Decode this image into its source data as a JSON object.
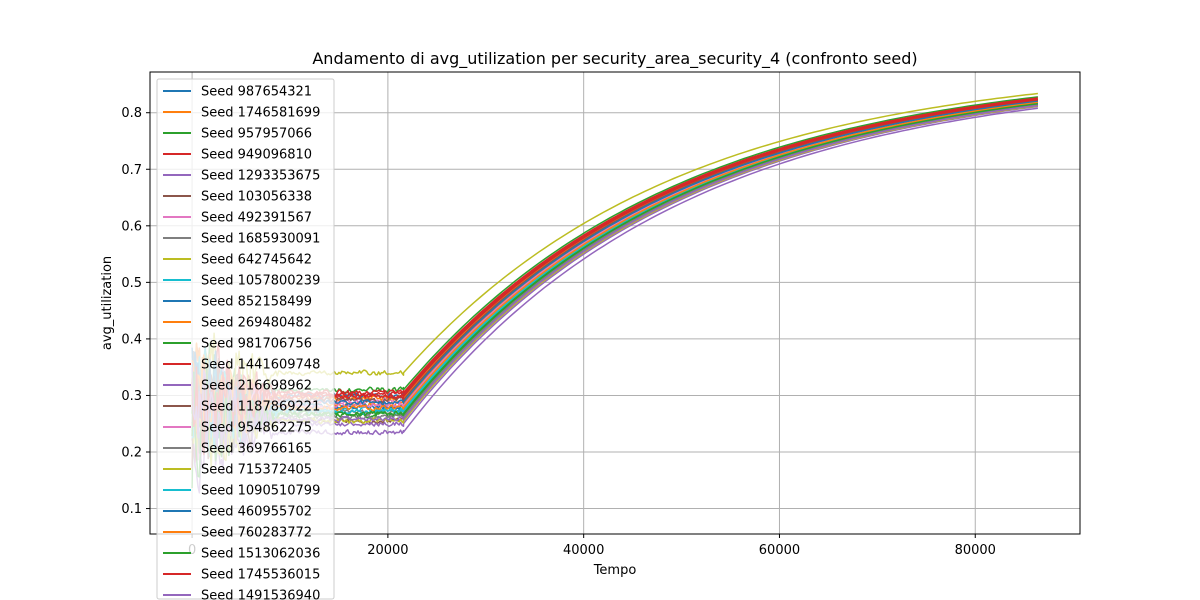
{
  "chart_data": {
    "type": "line",
    "title": "Andamento di avg_utilization per security_area_security_4 (confronto seed)",
    "xlabel": "Tempo",
    "ylabel": "avg_utilization",
    "xlim": [
      -4300,
      90700
    ],
    "ylim": [
      0.055,
      0.872
    ],
    "xticks": [
      0,
      20000,
      40000,
      60000,
      80000
    ],
    "xtick_labels": [
      "0",
      "20000",
      "40000",
      "60000",
      "80000"
    ],
    "yticks": [
      0.1,
      0.2,
      0.3,
      0.4,
      0.5,
      0.6,
      0.7,
      0.8
    ],
    "ytick_labels": [
      "0.1",
      "0.2",
      "0.3",
      "0.4",
      "0.5",
      "0.6",
      "0.7",
      "0.8"
    ],
    "grid": true,
    "legend_position": "upper-left",
    "x_ramp_start": 21600,
    "x_end": 86400,
    "series": [
      {
        "name": "Seed 987654321",
        "color": "#1f77b4",
        "plateau": 0.3,
        "end": 0.823
      },
      {
        "name": "Seed 1746581699",
        "color": "#ff7f0e",
        "plateau": 0.285,
        "end": 0.82
      },
      {
        "name": "Seed 957957066",
        "color": "#2ca02c",
        "plateau": 0.31,
        "end": 0.828
      },
      {
        "name": "Seed 949096810",
        "color": "#d62728",
        "plateau": 0.305,
        "end": 0.826
      },
      {
        "name": "Seed 1293353675",
        "color": "#9467bd",
        "plateau": 0.235,
        "end": 0.808
      },
      {
        "name": "Seed 103056338",
        "color": "#8c564b",
        "plateau": 0.255,
        "end": 0.812
      },
      {
        "name": "Seed 492391567",
        "color": "#e377c2",
        "plateau": 0.29,
        "end": 0.821
      },
      {
        "name": "Seed 1685930091",
        "color": "#7f7f7f",
        "plateau": 0.27,
        "end": 0.816
      },
      {
        "name": "Seed 642745642",
        "color": "#bcbd22",
        "plateau": 0.34,
        "end": 0.834
      },
      {
        "name": "Seed 1057800239",
        "color": "#17becf",
        "plateau": 0.275,
        "end": 0.818
      },
      {
        "name": "Seed 852158499",
        "color": "#1f77b4",
        "plateau": 0.28,
        "end": 0.819
      },
      {
        "name": "Seed 269480482",
        "color": "#ff7f0e",
        "plateau": 0.295,
        "end": 0.822
      },
      {
        "name": "Seed 981706756",
        "color": "#2ca02c",
        "plateau": 0.265,
        "end": 0.815
      },
      {
        "name": "Seed 1441609748",
        "color": "#d62728",
        "plateau": 0.302,
        "end": 0.824
      },
      {
        "name": "Seed 216698962",
        "color": "#9467bd",
        "plateau": 0.25,
        "end": 0.811
      },
      {
        "name": "Seed 1187869221",
        "color": "#8c564b",
        "plateau": 0.292,
        "end": 0.821
      },
      {
        "name": "Seed 954862275",
        "color": "#e377c2",
        "plateau": 0.282,
        "end": 0.819
      },
      {
        "name": "Seed 369766165",
        "color": "#7f7f7f",
        "plateau": 0.262,
        "end": 0.814
      },
      {
        "name": "Seed 715372405",
        "color": "#bcbd22",
        "plateau": 0.255,
        "end": 0.812
      },
      {
        "name": "Seed 1090510799",
        "color": "#17becf",
        "plateau": 0.272,
        "end": 0.817
      },
      {
        "name": "Seed 460955702",
        "color": "#1f77b4",
        "plateau": 0.288,
        "end": 0.82
      },
      {
        "name": "Seed 760283772",
        "color": "#ff7f0e",
        "plateau": 0.278,
        "end": 0.818
      },
      {
        "name": "Seed 1513062036",
        "color": "#2ca02c",
        "plateau": 0.268,
        "end": 0.816
      },
      {
        "name": "Seed 1745536015",
        "color": "#d62728",
        "plateau": 0.298,
        "end": 0.823
      },
      {
        "name": "Seed 1491536940",
        "color": "#9467bd",
        "plateau": 0.258,
        "end": 0.813
      }
    ]
  }
}
